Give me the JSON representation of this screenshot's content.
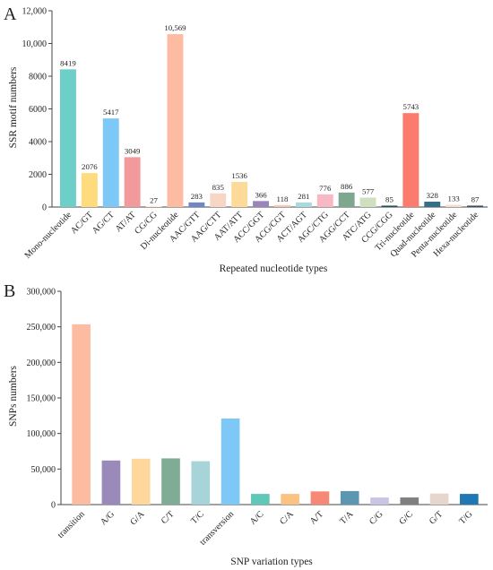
{
  "chart_data": [
    {
      "panel": "A",
      "type": "bar",
      "xlabel": "Repeated nucleotide types",
      "ylabel": "SSR motif numbers",
      "ylim": [
        0,
        12000
      ],
      "yticks": [
        "0",
        "2000",
        "4000",
        "6000",
        "8000",
        "10,000",
        "12,000"
      ],
      "ytick_values": [
        0,
        2000,
        4000,
        6000,
        8000,
        10000,
        12000
      ],
      "grid": false,
      "categories": [
        "Mono-nucleotide",
        "AC/GT",
        "AG/CT",
        "AT/AT",
        "CG/CG",
        "Di-nucleotide",
        "AAC/GTT",
        "AAG/CTT",
        "AAT/ATT",
        "ACC/GGT",
        "ACG/CGT",
        "ACT/AGT",
        "AGC/CTG",
        "AGG/CCT",
        "ATC/ATG",
        "CCG/CGG",
        "Tri-nucleotide",
        "Quad-nucleotide",
        "Penta-nucleotide",
        "Hexa-nucleotide"
      ],
      "values": [
        8419,
        2076,
        5417,
        3049,
        27,
        10569,
        283,
        835,
        1536,
        366,
        118,
        281,
        776,
        886,
        577,
        85,
        5743,
        328,
        133,
        87
      ],
      "data_labels": [
        "8419",
        "2076",
        "5417",
        "3049",
        "27",
        "10,569",
        "283",
        "835",
        "1536",
        "366",
        "118",
        "281",
        "776",
        "886",
        "577",
        "85",
        "5743",
        "328",
        "133",
        "87"
      ],
      "colors": [
        "#6dcfc8",
        "#fedc7e",
        "#7ec8f8",
        "#f29a9b",
        "#fde6ad",
        "#fdbca1",
        "#6f88c4",
        "#f6d6c4",
        "#fdda98",
        "#9a86b8",
        "#f7c5b8",
        "#a8d9df",
        "#f8b8c3",
        "#7fa78f",
        "#cfe0c0",
        "#1e4f5a",
        "#fb7c6d",
        "#356e88",
        "#f0ddd2",
        "#3e4f62"
      ]
    },
    {
      "panel": "B",
      "type": "bar",
      "xlabel": "SNP variation types",
      "ylabel": "SNPs numbers",
      "ylim": [
        0,
        300000
      ],
      "yticks": [
        "0",
        "50,000",
        "100,000",
        "150,000",
        "200,000",
        "250,000",
        "300,000"
      ],
      "ytick_values": [
        0,
        50000,
        100000,
        150000,
        200000,
        250000,
        300000
      ],
      "grid": false,
      "categories": [
        "transition",
        "A/G",
        "G/A",
        "C/T",
        "T/C",
        "transversion",
        "A/C",
        "C/A",
        "A/T",
        "T/A",
        "C/G",
        "G/C",
        "G/T",
        "T/G"
      ],
      "values": [
        253500,
        62000,
        64500,
        65000,
        61000,
        121000,
        15000,
        15000,
        18500,
        19000,
        10000,
        10000,
        15500,
        15000
      ],
      "colors": [
        "#fdbca1",
        "#9a8ab9",
        "#fdd79c",
        "#80ab95",
        "#a6d4d9",
        "#7ec8f8",
        "#5ec8b9",
        "#fbc283",
        "#f78876",
        "#5d96b0",
        "#ccc4e4",
        "#7f7f7f",
        "#e6d6cc",
        "#1f77b4"
      ]
    }
  ],
  "panels": [
    {
      "letter": "A"
    },
    {
      "letter": "B"
    }
  ]
}
